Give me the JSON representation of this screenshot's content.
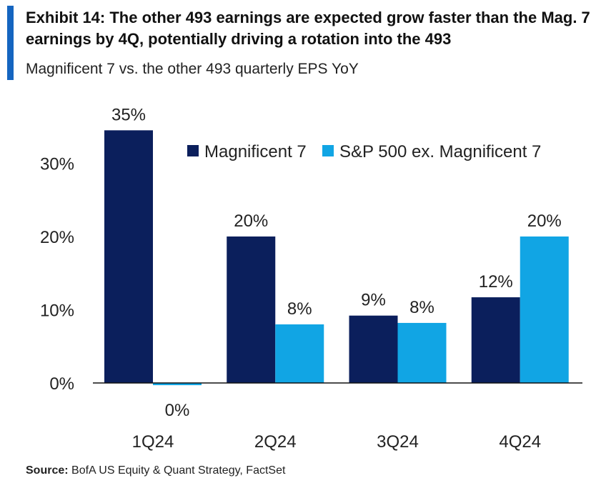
{
  "header": {
    "title": "Exhibit 14: The other 493 earnings are expected grow faster than the Mag. 7 earnings by 4Q, potentially driving a rotation into the 493",
    "subtitle": "Magnificent 7 vs. the other 493 quarterly EPS YoY"
  },
  "footer": {
    "source_label": "Source:",
    "source_text": " BofA US Equity & Quant Strategy, FactSet"
  },
  "colors": {
    "series1": "#0b1f5c",
    "series2": "#11a5e4",
    "accent": "#1565c0"
  },
  "chart_data": {
    "type": "bar",
    "categories": [
      "1Q24",
      "2Q24",
      "3Q24",
      "4Q24"
    ],
    "series": [
      {
        "name": "Magnificent 7",
        "values": [
          34.5,
          20.0,
          9.2,
          11.7
        ],
        "labels": [
          "35%",
          "20%",
          "9%",
          "12%"
        ]
      },
      {
        "name": "S&P 500 ex. Magnificent 7",
        "values": [
          -0.3,
          8.0,
          8.2,
          20.0
        ],
        "labels": [
          "0%",
          "8%",
          "8%",
          "20%"
        ]
      }
    ],
    "yticks": [
      0,
      10,
      20,
      30
    ],
    "ytick_labels": [
      "0%",
      "10%",
      "20%",
      "30%"
    ],
    "ylim": [
      0,
      35
    ],
    "legend": "top-right",
    "grid": false
  }
}
